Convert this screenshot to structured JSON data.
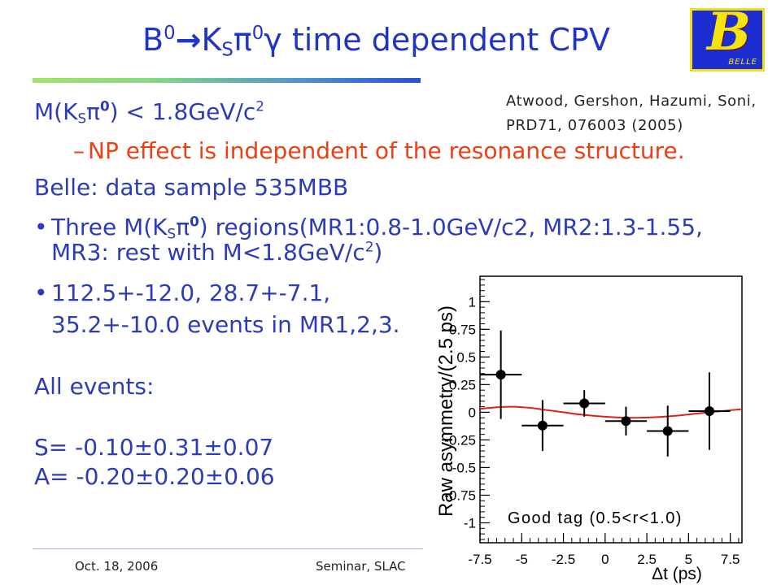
{
  "title": [
    "B",
    "0",
    "→",
    "K",
    "S",
    "π",
    "0",
    "γ",
    " time dependent CPV"
  ],
  "logo": {
    "letter": "B",
    "text": "BELLE",
    "colors": {
      "background": "#1c2ed2",
      "border": "#f2e00c",
      "letter": "#f6e40f"
    }
  },
  "reference": {
    "line1": "Atwood, Gershon, Hazumi, Soni,",
    "line2": "PRD71, 076003 (2005)"
  },
  "body": {
    "mass_cut": [
      "M(K",
      "S",
      "π",
      "0",
      ") < 1.8GeV/c",
      "2"
    ],
    "np_note": {
      "dash": "–",
      "text": "NP effect is independent of the resonance structure."
    },
    "data_sample": "Belle: data sample 535MBB",
    "regions": {
      "bullet": "•",
      "line1": [
        "Three M(K",
        "S",
        "π",
        "0",
        ") regions(MR1:0.8-1.0GeV/c2, MR2:1.3-1.55,"
      ],
      "line2": [
        "MR3: rest with M<1.8GeV/c",
        "2",
        ")"
      ]
    },
    "yields": {
      "bullet": "•",
      "line1": "112.5+-12.0, 28.7+-7.1,",
      "line2": "35.2+-10.0 events in MR1,2,3."
    },
    "all_events": "All events:",
    "S": "S= -0.10±0.31±0.07",
    "A": "A= -0.20±0.20±0.06"
  },
  "footer": {
    "date": "Oct. 18, 2006",
    "venue": "Seminar, SLAC"
  },
  "colors": {
    "title": "#2035c6",
    "text": "#2c3cb7",
    "highlight": "#ee3f14",
    "accent_bar_start": "#a3e26a",
    "accent_bar_end": "#2a4fd6",
    "fit_curve": "#e0201c"
  },
  "chart_data": {
    "type": "scatter",
    "xlabel": "Δt (ps)",
    "ylabel": "Raw asymmetry/(2.5 ps)",
    "xlim": [
      -7.5,
      8.2
    ],
    "ylim": [
      -1.18,
      1.23
    ],
    "xticks": [
      -7.5,
      -5,
      -2.5,
      0,
      2.5,
      5,
      7.5
    ],
    "xticklabels": [
      "-7.5",
      "-5",
      "-2.5",
      "0",
      "2.5",
      "5",
      "7.5"
    ],
    "yticks": [
      -1,
      -0.75,
      -0.5,
      -0.25,
      0,
      0.25,
      0.5,
      0.75,
      1
    ],
    "yticklabels": [
      "-1",
      "-0.75",
      "-0.5",
      "-0.25",
      "0",
      "0.25",
      "0.5",
      "0.75",
      "1"
    ],
    "grid": false,
    "annotation": "Good tag (0.5<r<1.0)",
    "series": [
      {
        "type": "scatter",
        "color": "#000000",
        "x": [
          -6.25,
          -3.75,
          -1.25,
          1.25,
          3.75,
          6.25
        ],
        "y": [
          0.34,
          -0.12,
          0.08,
          -0.08,
          -0.17,
          0.01
        ],
        "xerr": [
          1.25,
          1.25,
          1.25,
          1.25,
          1.25,
          1.25
        ],
        "yerr": [
          0.4,
          0.23,
          0.12,
          0.13,
          0.23,
          0.35
        ]
      },
      {
        "type": "line",
        "color": "#e0201c",
        "x": [
          -7.5,
          -6.5,
          -5.5,
          -4.5,
          -3.5,
          -2.5,
          -1.5,
          -0.5,
          0.5,
          1.5,
          2.5,
          3.5,
          4.5,
          5.5,
          6.5,
          7.5,
          8.2
        ],
        "y": [
          0.03,
          0.045,
          0.05,
          0.04,
          0.02,
          0.0,
          -0.02,
          -0.035,
          -0.045,
          -0.05,
          -0.048,
          -0.04,
          -0.028,
          -0.012,
          0.003,
          0.018,
          0.028
        ]
      }
    ]
  }
}
